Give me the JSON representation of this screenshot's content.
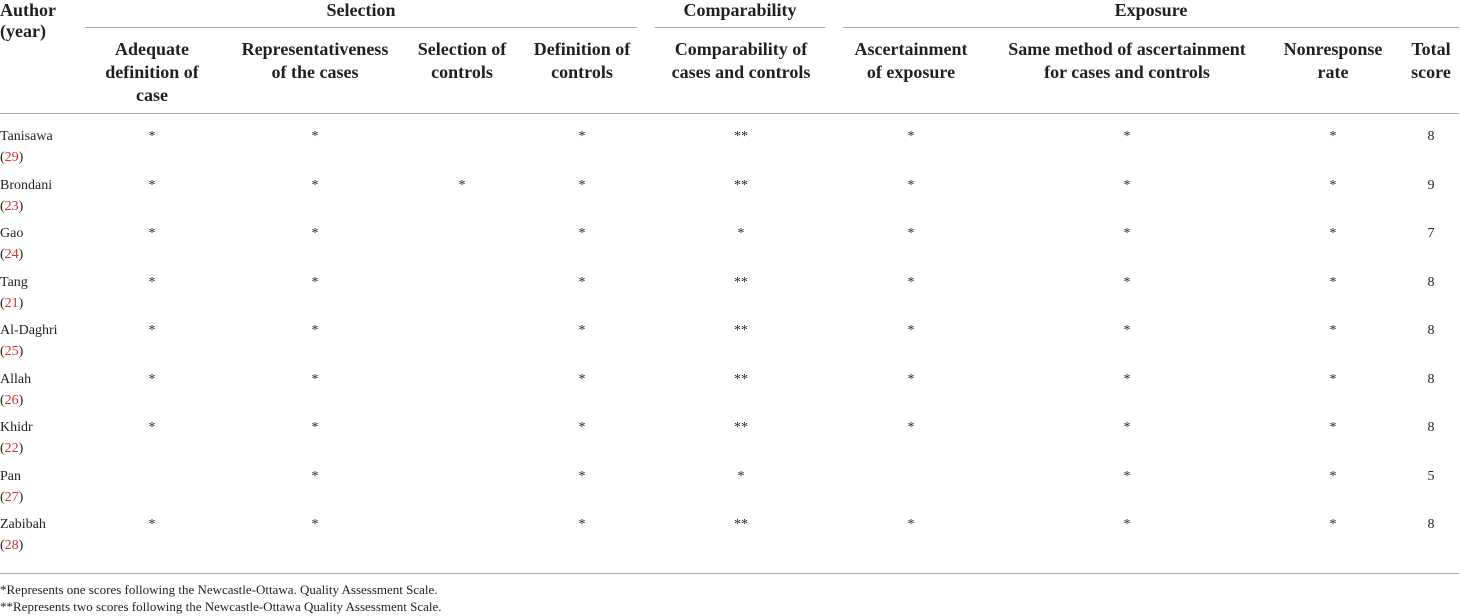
{
  "header": {
    "author_label": [
      "Author",
      "(year)"
    ],
    "groups": {
      "selection": "Selection",
      "comparability": "Comparability",
      "exposure": "Exposure"
    },
    "columns": [
      [
        "Adequate",
        "definition of",
        "case"
      ],
      [
        "Representativeness",
        "of the cases"
      ],
      [
        "Selection of",
        "controls"
      ],
      [
        "Definition of",
        "controls"
      ],
      [
        "Comparability of",
        "cases and controls"
      ],
      [
        "Ascertainment",
        "of exposure"
      ],
      [
        "Same method of ascertainment",
        "for cases and controls"
      ],
      [
        "Nonresponse",
        "rate"
      ],
      [
        "Total",
        "score"
      ]
    ]
  },
  "ref_brackets": {
    "open": "(",
    "close": ")"
  },
  "rows": [
    {
      "author": "Tanisawa",
      "ref": "29",
      "scores": [
        "*",
        "*",
        "",
        "*",
        "**",
        "*",
        "*",
        "*"
      ],
      "total": "8"
    },
    {
      "author": "Brondani",
      "ref": "23",
      "scores": [
        "*",
        "*",
        "*",
        "*",
        "**",
        "*",
        "*",
        "*"
      ],
      "total": "9"
    },
    {
      "author": "Gao",
      "ref": "24",
      "scores": [
        "*",
        "*",
        "",
        "*",
        "*",
        "*",
        "*",
        "*"
      ],
      "total": "7"
    },
    {
      "author": "Tang",
      "ref": "21",
      "scores": [
        "*",
        "*",
        "",
        "*",
        "**",
        "*",
        "*",
        "*"
      ],
      "total": "8"
    },
    {
      "author": "Al-Daghri",
      "ref": "25",
      "scores": [
        "*",
        "*",
        "",
        "*",
        "**",
        "*",
        "*",
        "*"
      ],
      "total": "8"
    },
    {
      "author": "Allah",
      "ref": "26",
      "scores": [
        "*",
        "*",
        "",
        "*",
        "**",
        "*",
        "*",
        "*"
      ],
      "total": "8"
    },
    {
      "author": "Khidr",
      "ref": "22",
      "scores": [
        "*",
        "*",
        "",
        "*",
        "**",
        "*",
        "*",
        "*"
      ],
      "total": "8"
    },
    {
      "author": "Pan",
      "ref": "27",
      "scores": [
        "",
        "*",
        "",
        "*",
        "*",
        "",
        "*",
        "*"
      ],
      "total": "5"
    },
    {
      "author": "Zabibah",
      "ref": "28",
      "scores": [
        "*",
        "*",
        "",
        "*",
        "**",
        "*",
        "*",
        "*"
      ],
      "total": "8"
    }
  ],
  "footnotes": [
    "*Represents one scores following the Newcastle-Ottawa. Quality Assessment Scale.",
    "**Represents two scores following the Newcastle-Ottawa Quality Assessment Scale."
  ],
  "colors": {
    "text": "#231f20",
    "reference": "#d0312d",
    "rule": "#a7a9ac"
  }
}
